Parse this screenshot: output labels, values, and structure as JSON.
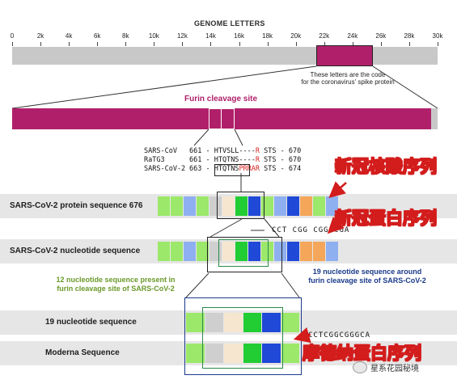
{
  "genome": {
    "title": "GENOME LETTERS",
    "ticks": [
      "0",
      "2k",
      "4k",
      "6k",
      "8k",
      "10k",
      "12k",
      "14k",
      "16k",
      "18k",
      "20k",
      "22k",
      "24k",
      "26k",
      "28k",
      "30k"
    ],
    "note_line1": "These letters are the code",
    "note_line2": "for the coronavirus' spike protein"
  },
  "furin": {
    "label": "Furin cleavage site"
  },
  "alignment": [
    {
      "name": "SARS-CoV",
      "start": "661 -",
      "seq": "HTVSLL",
      "gap": "----",
      "tail": "R",
      "end": "STS - 670"
    },
    {
      "name": "RaTG3",
      "start": "661 -",
      "seq": "HTQTNS",
      "gap": "----",
      "tail": "R",
      "end": "STS - 670"
    },
    {
      "name": "SARS-CoV-2",
      "start": "663 -",
      "seq": "HTQTNS",
      "gap": "PRRA",
      "tail": "R",
      "end": "STS - 674"
    }
  ],
  "rows": {
    "protein_label": "SARS-CoV-2 protein sequence  676",
    "nucleotide_label": "SARS-CoV-2 nucleotide sequence",
    "nuc19_label": "19 nucleotide sequence",
    "moderna_label": "Moderna Sequence",
    "nucleotide_letters": "CCT CGG CGG CGA",
    "moderna_letters": "CCTCGGCGGGCA"
  },
  "annotations": {
    "green": [
      "12 nucleotide sequence present in",
      "furin cleavage site of SARS-CoV-2"
    ],
    "blue": [
      "19 nucleotide sequence around",
      "furin cleavage site of SARS-CoV-2"
    ]
  },
  "cn_labels": {
    "nucleic": "新冠核酸序列",
    "protein": "新冠蛋白序列",
    "moderna": "摩德纳蛋白序列"
  },
  "watermark": "星系花园秘境",
  "colors": {
    "spike": "#b0206a",
    "light_green": "#9be86a",
    "green": "#22cc33",
    "blue": "#1f49d6",
    "light_blue": "#8fb0f0",
    "orange": "#f4a65a",
    "gray": "#cfcfcf",
    "cream": "#f6e6cf",
    "annot_red": "#d31c1c"
  }
}
